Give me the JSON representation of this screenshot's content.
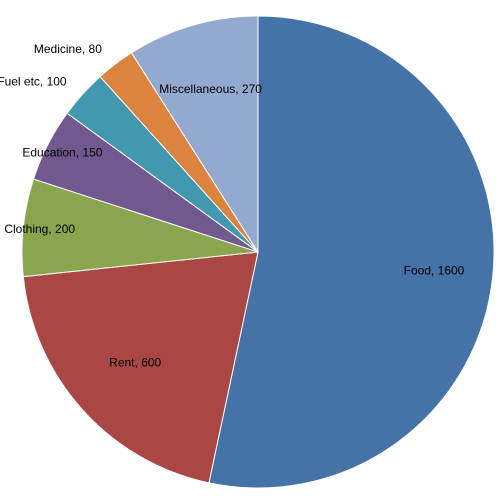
{
  "chart_data": {
    "type": "pie",
    "title": "",
    "categories": [
      "Food",
      "Rent",
      "Clothing",
      "Education",
      "Fuel etc",
      "Medicine",
      "Miscellaneous"
    ],
    "values": [
      1600,
      600,
      200,
      150,
      100,
      80,
      270
    ],
    "data_labels": [
      "Food, 1600",
      "Rent, 600",
      "Clothing, 200",
      "Education, 150",
      "Fuel etc, 100",
      "Medicine, 80",
      "Miscellaneous, 270"
    ],
    "colors": [
      "#4572A7",
      "#AA4643",
      "#89A54E",
      "#71588F",
      "#4198AF",
      "#DB843D",
      "#93A9CF"
    ],
    "start_angle": "12 o'clock",
    "direction": "clockwise",
    "legend": "none"
  }
}
